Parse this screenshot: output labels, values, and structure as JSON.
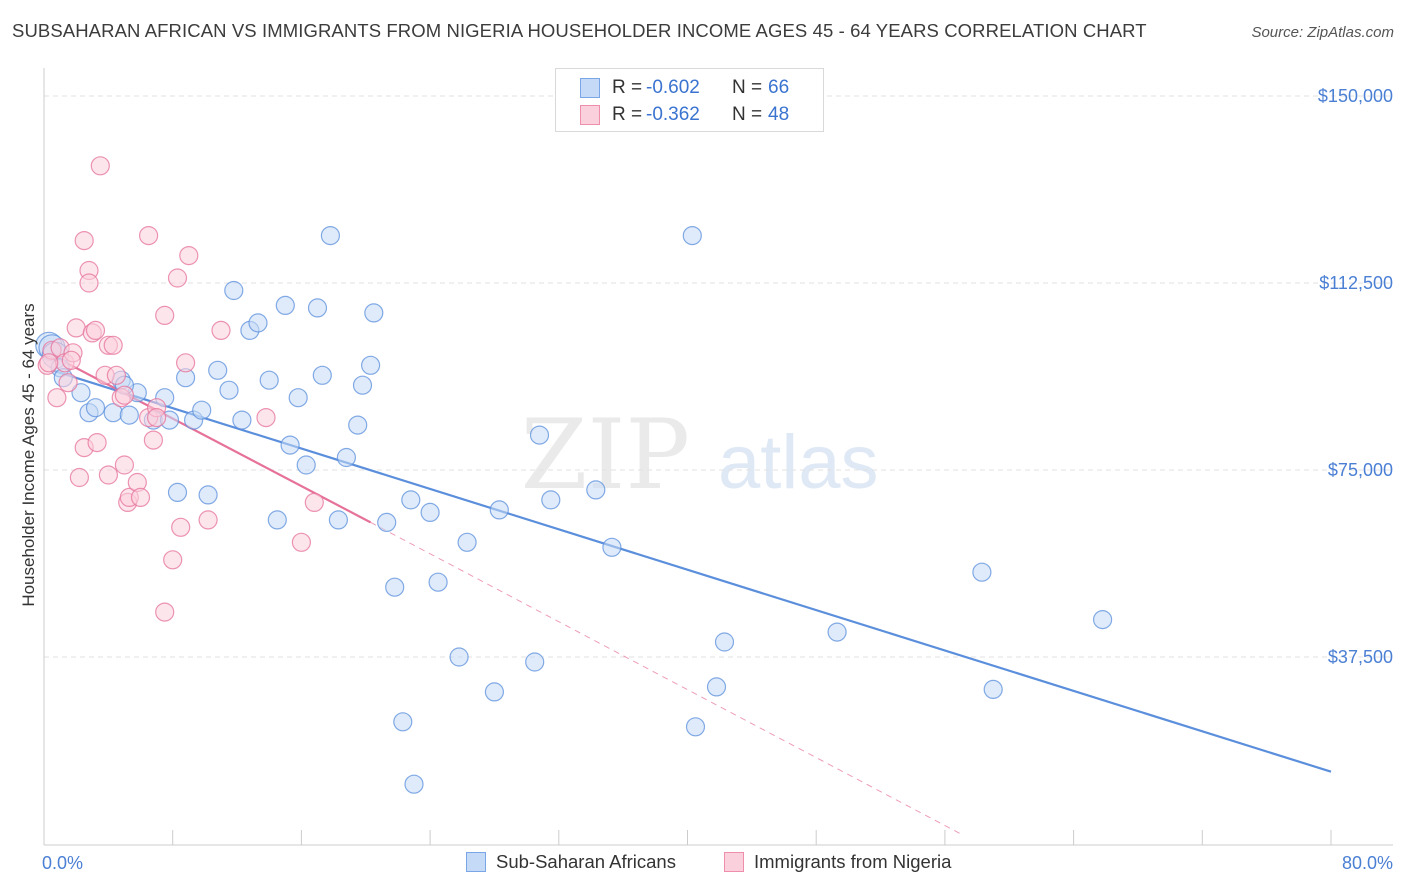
{
  "header": {
    "title": "SUBSAHARAN AFRICAN VS IMMIGRANTS FROM NIGERIA HOUSEHOLDER INCOME AGES 45 - 64 YEARS CORRELATION CHART",
    "source": "Source: ZipAtlas.com"
  },
  "watermark": {
    "zip": "ZIP",
    "atlas": "atlas"
  },
  "legend": {
    "rows": [
      {
        "r_label": "R =",
        "r_value": "-0.602",
        "n_label": "N =",
        "n_value": "66",
        "color": "#7aa6e6",
        "fill": "#c5daf6"
      },
      {
        "r_label": "R =",
        "r_value": "-0.362",
        "n_label": "N =",
        "n_value": "48",
        "color": "#ee8eaa",
        "fill": "#fbd0dd"
      }
    ]
  },
  "bottom_legend": {
    "items": [
      {
        "label": "Sub-Saharan Africans",
        "color": "#7aa6e6",
        "fill": "#c5daf6"
      },
      {
        "label": "Immigrants from Nigeria",
        "color": "#ee8eaa",
        "fill": "#fbd0dd"
      }
    ]
  },
  "chart_data": {
    "type": "scatter",
    "title": "SUBSAHARAN AFRICAN VS IMMIGRANTS FROM NIGERIA HOUSEHOLDER INCOME AGES 45 - 64 YEARS CORRELATION CHART",
    "xlabel": "",
    "ylabel": "Householder Income Ages 45 - 64 years",
    "xlim": [
      0,
      80
    ],
    "ylim": [
      0,
      150000
    ],
    "x_tick_labels": [
      "0.0%",
      "80.0%"
    ],
    "y_ticks": [
      37500,
      75000,
      112500,
      150000
    ],
    "y_tick_labels": [
      "$37,500",
      "$75,000",
      "$112,500",
      "$150,000"
    ],
    "grid": true,
    "legend_position": "top-center",
    "series": [
      {
        "name": "Sub-Saharan Africans",
        "color": "#5b8fdc",
        "fill": "#c5daf6",
        "r": -0.602,
        "n": 66,
        "trend": {
          "x": [
            0.5,
            80.0
          ],
          "y": [
            95000,
            14500
          ],
          "style": "solid"
        },
        "points": [
          [
            0.3,
            100000
          ],
          [
            0.5,
            99500
          ],
          [
            0.7,
            98000
          ],
          [
            1.0,
            95500
          ],
          [
            1.2,
            93500
          ],
          [
            2.3,
            90500
          ],
          [
            2.8,
            86500
          ],
          [
            3.2,
            87500
          ],
          [
            4.3,
            86500
          ],
          [
            4.8,
            93000
          ],
          [
            5.3,
            86000
          ],
          [
            5.8,
            90500
          ],
          [
            6.8,
            85000
          ],
          [
            7.5,
            89500
          ],
          [
            7.8,
            85000
          ],
          [
            8.3,
            70500
          ],
          [
            8.8,
            93500
          ],
          [
            9.3,
            85000
          ],
          [
            9.8,
            87000
          ],
          [
            10.2,
            70000
          ],
          [
            10.8,
            95000
          ],
          [
            11.5,
            91000
          ],
          [
            11.8,
            111000
          ],
          [
            12.3,
            85000
          ],
          [
            12.8,
            103000
          ],
          [
            13.3,
            104500
          ],
          [
            14.0,
            93000
          ],
          [
            14.5,
            65000
          ],
          [
            15.0,
            108000
          ],
          [
            15.3,
            80000
          ],
          [
            15.8,
            89500
          ],
          [
            16.3,
            76000
          ],
          [
            17.0,
            107500
          ],
          [
            17.3,
            94000
          ],
          [
            17.8,
            122000
          ],
          [
            18.3,
            65000
          ],
          [
            18.8,
            77500
          ],
          [
            19.5,
            84000
          ],
          [
            19.8,
            92000
          ],
          [
            20.3,
            96000
          ],
          [
            20.5,
            106500
          ],
          [
            21.3,
            64500
          ],
          [
            21.8,
            51500
          ],
          [
            22.3,
            24500
          ],
          [
            22.8,
            69000
          ],
          [
            23.0,
            12000
          ],
          [
            24.0,
            66500
          ],
          [
            24.5,
            52500
          ],
          [
            25.8,
            37500
          ],
          [
            26.3,
            60500
          ],
          [
            28.0,
            30500
          ],
          [
            28.3,
            67000
          ],
          [
            30.5,
            36500
          ],
          [
            30.8,
            82000
          ],
          [
            31.5,
            69000
          ],
          [
            34.3,
            71000
          ],
          [
            35.3,
            59500
          ],
          [
            40.3,
            122000
          ],
          [
            40.5,
            23500
          ],
          [
            41.8,
            31500
          ],
          [
            42.3,
            40500
          ],
          [
            49.3,
            42500
          ],
          [
            58.3,
            54500
          ],
          [
            59.0,
            31000
          ],
          [
            65.8,
            45000
          ],
          [
            5.0,
            92000
          ]
        ]
      },
      {
        "name": "Immigrants from Nigeria",
        "color": "#e6729a",
        "fill": "#fbd0dd",
        "r": -0.362,
        "n": 48,
        "trend": {
          "x": [
            0.5,
            20.3
          ],
          "y": [
            98000,
            64500
          ],
          "style": "solid"
        },
        "trend_extension": {
          "x": [
            20.3,
            57.0
          ],
          "y": [
            64500,
            2000
          ],
          "style": "dashed"
        },
        "points": [
          [
            0.2,
            96000
          ],
          [
            0.5,
            99000
          ],
          [
            0.8,
            89500
          ],
          [
            1.0,
            99500
          ],
          [
            1.3,
            96500
          ],
          [
            1.5,
            92500
          ],
          [
            1.8,
            98500
          ],
          [
            2.0,
            103500
          ],
          [
            2.2,
            73500
          ],
          [
            2.5,
            79500
          ],
          [
            2.5,
            121000
          ],
          [
            2.8,
            115000
          ],
          [
            2.8,
            112500
          ],
          [
            3.0,
            102500
          ],
          [
            3.2,
            103000
          ],
          [
            3.3,
            80500
          ],
          [
            3.5,
            136000
          ],
          [
            3.8,
            94000
          ],
          [
            4.0,
            74000
          ],
          [
            4.0,
            100000
          ],
          [
            4.3,
            100000
          ],
          [
            4.5,
            94000
          ],
          [
            4.8,
            89500
          ],
          [
            5.0,
            90000
          ],
          [
            5.0,
            76000
          ],
          [
            5.2,
            68500
          ],
          [
            5.3,
            69500
          ],
          [
            5.8,
            72500
          ],
          [
            6.0,
            69500
          ],
          [
            6.5,
            85500
          ],
          [
            6.5,
            122000
          ],
          [
            6.8,
            81000
          ],
          [
            7.0,
            87500
          ],
          [
            7.0,
            85500
          ],
          [
            7.5,
            106000
          ],
          [
            7.5,
            46500
          ],
          [
            8.0,
            57000
          ],
          [
            8.3,
            113500
          ],
          [
            8.5,
            63500
          ],
          [
            8.8,
            96500
          ],
          [
            9.0,
            118000
          ],
          [
            10.2,
            65000
          ],
          [
            11.0,
            103000
          ],
          [
            13.8,
            85500
          ],
          [
            16.0,
            60500
          ],
          [
            16.8,
            68500
          ],
          [
            0.3,
            96500
          ],
          [
            1.7,
            97000
          ]
        ]
      }
    ]
  }
}
